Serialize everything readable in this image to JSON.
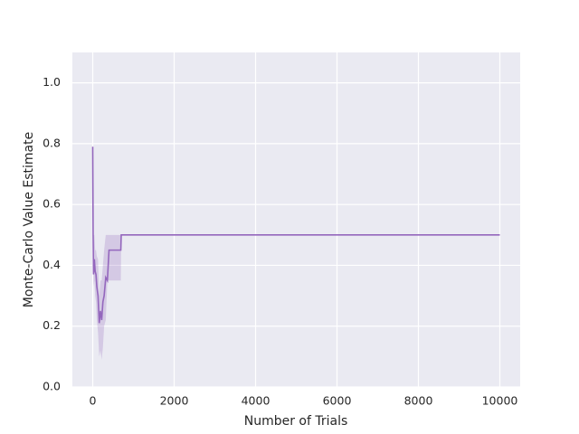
{
  "chart_data": {
    "type": "line",
    "xlabel": "Number of Trials",
    "ylabel": "Monte-Carlo Value Estimate",
    "x": [
      0,
      10,
      20,
      40,
      60,
      80,
      100,
      130,
      160,
      190,
      220,
      250,
      280,
      320,
      360,
      400,
      500,
      600,
      690,
      700,
      1000,
      10000
    ],
    "series": [
      {
        "color": "#9467bd",
        "values": [
          0.79,
          0.5,
          0.37,
          0.42,
          0.38,
          0.37,
          0.33,
          0.3,
          0.21,
          0.25,
          0.22,
          0.28,
          0.3,
          0.36,
          0.35,
          0.45,
          0.45,
          0.45,
          0.45,
          0.5,
          0.5,
          0.5
        ],
        "lower": [
          0.79,
          0.45,
          0.33,
          0.35,
          0.3,
          0.28,
          0.22,
          0.18,
          0.1,
          0.12,
          0.09,
          0.13,
          0.2,
          0.22,
          0.35,
          0.35,
          0.35,
          0.35,
          0.35,
          0.5,
          0.5,
          0.5
        ],
        "upper": [
          0.79,
          0.55,
          0.5,
          0.5,
          0.45,
          0.45,
          0.43,
          0.42,
          0.3,
          0.35,
          0.35,
          0.4,
          0.45,
          0.5,
          0.5,
          0.5,
          0.5,
          0.5,
          0.5,
          0.5,
          0.5,
          0.5
        ]
      }
    ],
    "xlim": [
      -500,
      10500
    ],
    "xticks": [
      0,
      2000,
      4000,
      6000,
      8000,
      10000
    ],
    "ylim": [
      0,
      1.1
    ],
    "yticks": [
      {
        "value": 0,
        "label": "0.0"
      },
      {
        "value": 0.2,
        "label": "0.2"
      },
      {
        "value": 0.4,
        "label": "0.4"
      },
      {
        "value": 0.6,
        "label": "0.6"
      },
      {
        "value": 0.8,
        "label": "0.8"
      },
      {
        "value": 1,
        "label": "1.0"
      }
    ],
    "grid": true
  }
}
